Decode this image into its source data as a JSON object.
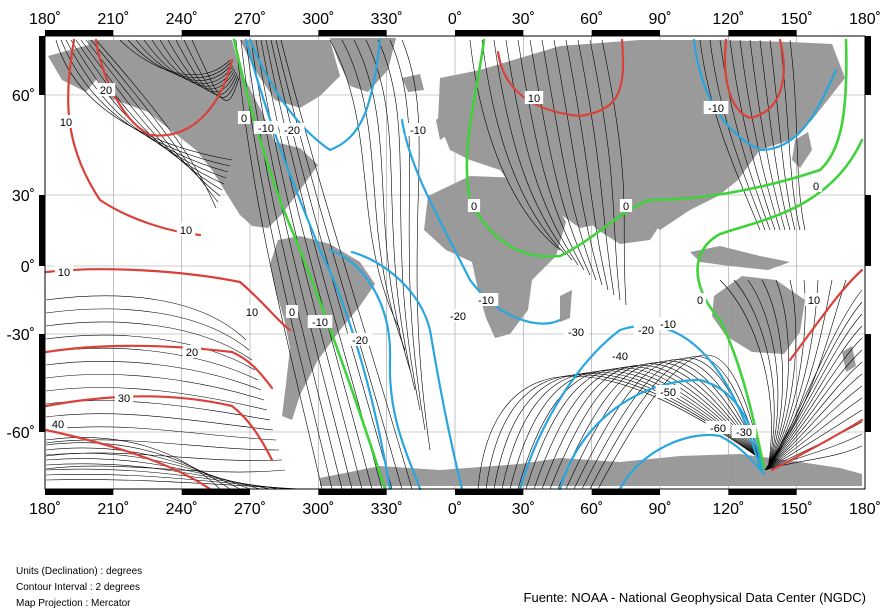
{
  "map": {
    "lon_ticks": [
      "180˚",
      "210˚",
      "240˚",
      "270˚",
      "300˚",
      "330˚",
      "0˚",
      "30˚",
      "60˚",
      "90˚",
      "120˚",
      "150˚",
      "180˚"
    ],
    "lat_ticks": [
      "60˚",
      "30˚",
      "0˚",
      "-30˚",
      "-60˚"
    ],
    "contour_labels": [
      "-10",
      "-20",
      "-30",
      "-40",
      "-50",
      "-60",
      "0",
      "10",
      "20",
      "30",
      "40"
    ]
  },
  "legend": {
    "units": "Units (Declination) : degrees",
    "interval": "Contour Interval : 2 degrees",
    "projection": "Map Projection : Mercator"
  },
  "source": "Fuente: NOAA - National Geophysical Data Center (NGDC)",
  "colors": {
    "land": "#9a9a9a",
    "positive": "#d9413a",
    "negative": "#2aa6df",
    "zero": "#3fd23a",
    "minor": "#000000",
    "frame": "#000000"
  }
}
